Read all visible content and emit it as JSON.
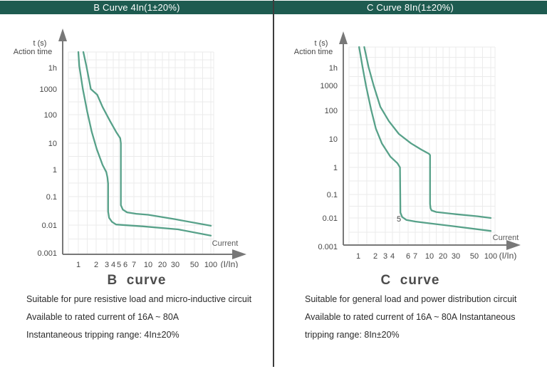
{
  "colors": {
    "header_bg": "#1e5b50",
    "header_text": "#ffffff",
    "curve": "#57a189",
    "grid": "#ebebeb",
    "axis": "#787878",
    "tick_text": "#474747",
    "divider": "#3c3c3c"
  },
  "panels": [
    {
      "header": "B Curve 4In(1±20%)",
      "title": "B  curve",
      "description_lines": [
        "Suitable for pure resistive load and micro-inductive circuit",
        "Available to rated current of 16A ~ 80A",
        "Instantaneous tripping range: 4In±20%"
      ]
    },
    {
      "header": "C Curve 8In(1±20%)",
      "title": "C  curve",
      "description_lines": [
        "Suitable for general load and power distribution circuit",
        "Available to rated current of 16A ~ 80A Instantaneous",
        "tripping range: 8In±20%"
      ]
    }
  ],
  "chart_data": [
    {
      "type": "line",
      "title": "B Curve 4In(1±20%)",
      "xlabel": "(I/In)",
      "x_axis_note": "Current",
      "ylabel": "t (s)",
      "ylabel2": "Action time",
      "x_scale": "log",
      "y_scale": "log",
      "xlim": [
        1,
        100
      ],
      "ylim": [
        0.001,
        10000
      ],
      "x_ticks": [
        1,
        2,
        3,
        4,
        5,
        6,
        7,
        10,
        20,
        30,
        50,
        100
      ],
      "y_ticks": [
        {
          "label": "1h",
          "value": 3600
        },
        {
          "label": "1000",
          "value": 1000
        },
        {
          "label": "100",
          "value": 100
        },
        {
          "label": "10",
          "value": 10
        },
        {
          "label": "1",
          "value": 1
        },
        {
          "label": "0.1",
          "value": 0.1
        },
        {
          "label": "0.01",
          "value": 0.01
        },
        {
          "label": "0.001",
          "value": 0.001
        }
      ],
      "series": [
        {
          "name": "lower-tripping-boundary",
          "points": [
            [
              1,
              10000
            ],
            [
              1.05,
              4000
            ],
            [
              1.25,
              1000
            ],
            [
              1.5,
              130
            ],
            [
              1.75,
              25
            ],
            [
              2.05,
              6
            ],
            [
              2.6,
              1.5
            ],
            [
              2.95,
              0.8
            ],
            [
              3.1,
              0.5
            ],
            [
              3.2,
              0.3
            ],
            [
              3.2,
              0.03
            ],
            [
              3.35,
              0.018
            ],
            [
              3.8,
              0.013
            ],
            [
              4.5,
              0.0105
            ],
            [
              9,
              0.009
            ],
            [
              33,
              0.007
            ],
            [
              100,
              0.0042
            ]
          ]
        },
        {
          "name": "upper-tripping-boundary",
          "points": [
            [
              1.28,
              10000
            ],
            [
              1.45,
              4000
            ],
            [
              1.7,
              1000
            ],
            [
              2.1,
              600
            ],
            [
              2.6,
              200
            ],
            [
              3.5,
              60
            ],
            [
              4.5,
              25
            ],
            [
              5.2,
              15
            ],
            [
              5.3,
              10
            ],
            [
              5.3,
              0.05
            ],
            [
              5.6,
              0.035
            ],
            [
              6.2,
              0.028
            ],
            [
              7.5,
              0.025
            ],
            [
              10,
              0.023
            ],
            [
              30,
              0.016
            ],
            [
              100,
              0.0095
            ]
          ]
        }
      ],
      "annotations": []
    },
    {
      "type": "line",
      "title": "C Curve 8In(1±20%)",
      "xlabel": "(I/In)",
      "x_axis_note": "Current",
      "ylabel": "t (s)",
      "ylabel2": "Action time",
      "x_scale": "log",
      "y_scale": "log",
      "xlim": [
        1,
        100
      ],
      "ylim": [
        0.001,
        15000
      ],
      "x_ticks": [
        1,
        2,
        3,
        4,
        6,
        7,
        10,
        20,
        30,
        50,
        100
      ],
      "y_ticks": [
        {
          "label": "1h",
          "value": 3600
        },
        {
          "label": "1000",
          "value": 1000
        },
        {
          "label": "100",
          "value": 100
        },
        {
          "label": "10",
          "value": 10
        },
        {
          "label": "1",
          "value": 1
        },
        {
          "label": "0.1",
          "value": 0.1
        },
        {
          "label": "0.01",
          "value": 0.01
        },
        {
          "label": "0.001",
          "value": 0.001
        }
      ],
      "series": [
        {
          "name": "lower-tripping-boundary",
          "points": [
            [
              1.05,
              15000
            ],
            [
              1.25,
              3800
            ],
            [
              1.45,
              1000
            ],
            [
              1.75,
              110
            ],
            [
              2.05,
              23
            ],
            [
              2.65,
              7
            ],
            [
              3.7,
              2.4
            ],
            [
              4.7,
              1.4
            ],
            [
              5.05,
              1.0
            ],
            [
              5.1,
              0.017
            ],
            [
              5.3,
              0.011
            ],
            [
              5.8,
              0.0085
            ],
            [
              7,
              0.0075
            ],
            [
              10,
              0.0065
            ],
            [
              30,
              0.005
            ],
            [
              100,
              0.0035
            ]
          ]
        },
        {
          "name": "upper-tripping-boundary",
          "points": [
            [
              1.35,
              15000
            ],
            [
              1.6,
              3800
            ],
            [
              1.9,
              1000
            ],
            [
              2.5,
              140
            ],
            [
              3.5,
              42
            ],
            [
              4.9,
              15
            ],
            [
              6.4,
              7
            ],
            [
              8.3,
              4.2
            ],
            [
              9.9,
              3
            ],
            [
              10.4,
              2.7
            ],
            [
              10.4,
              0.04
            ],
            [
              10.8,
              0.026
            ],
            [
              11.5,
              0.021
            ],
            [
              15,
              0.018
            ],
            [
              30,
              0.0145
            ],
            [
              60,
              0.0118
            ],
            [
              100,
              0.01
            ]
          ]
        }
      ],
      "annotations": [
        {
          "text": "5"
        }
      ]
    }
  ]
}
